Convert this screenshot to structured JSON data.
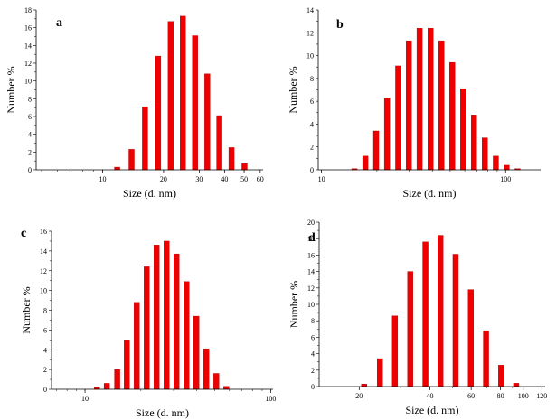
{
  "figure": {
    "bar_color": "#ee0000",
    "bar_edge_color": "#b00000",
    "axis_color": "#000000"
  },
  "chart_data": [
    {
      "panel": "a",
      "type": "bar",
      "xscale": "log",
      "xlim": [
        4.7,
        62
      ],
      "ylim": [
        0,
        18
      ],
      "x_ticks": [
        10,
        20,
        30,
        40,
        50,
        60
      ],
      "y_ticks": [
        0,
        2,
        4,
        6,
        8,
        10,
        12,
        14,
        16,
        18
      ],
      "xlabel": "Size (d. nm)",
      "ylabel": "Number %",
      "x": [
        11.8,
        13.9,
        16.2,
        18.8,
        21.7,
        24.9,
        28.6,
        32.9,
        37.7,
        43.3,
        50.2
      ],
      "values": [
        0.3,
        2.3,
        7.1,
        12.8,
        16.7,
        17.3,
        15.1,
        10.8,
        6.1,
        2.5,
        0.7
      ]
    },
    {
      "panel": "b",
      "type": "bar",
      "xscale": "log",
      "xlim": [
        9.6,
        155
      ],
      "ylim": [
        0,
        14
      ],
      "x_ticks": [
        10,
        100
      ],
      "y_ticks": [
        0,
        2,
        4,
        6,
        8,
        10,
        12,
        14
      ],
      "xlabel": "Size (d. nm)",
      "ylabel": "Number %",
      "x": [
        15.1,
        17.3,
        19.8,
        22.7,
        26.1,
        29.8,
        34.1,
        39.1,
        44.8,
        51.3,
        58.8,
        67.3,
        77.1,
        88.5,
        101.3,
        116.1
      ],
      "values": [
        0.1,
        1.2,
        3.4,
        6.3,
        9.1,
        11.3,
        12.4,
        12.4,
        11.3,
        9.4,
        7.1,
        4.8,
        2.8,
        1.2,
        0.4,
        0.1
      ]
    },
    {
      "panel": "c",
      "type": "bar",
      "xscale": "log",
      "xlim": [
        6.6,
        103
      ],
      "ylim": [
        0,
        16
      ],
      "x_ticks": [
        10,
        100
      ],
      "y_ticks": [
        0,
        2,
        4,
        6,
        8,
        10,
        12,
        14,
        16
      ],
      "xlabel": "Size (d. nm)",
      "ylabel": "Number %",
      "x": [
        11.6,
        13.1,
        14.9,
        16.8,
        19.0,
        21.5,
        24.3,
        27.5,
        31.1,
        35.2,
        39.8,
        45.0,
        51.0,
        57.7,
        65.2,
        73.8
      ],
      "values": [
        0.2,
        0.6,
        2.0,
        5.0,
        8.8,
        12.4,
        14.6,
        15.0,
        13.7,
        10.9,
        7.4,
        4.1,
        1.6,
        0.3,
        0.0,
        0.0
      ]
    },
    {
      "panel": "d",
      "type": "bar",
      "xscale": "log",
      "xlim": [
        13.5,
        124
      ],
      "ylim": [
        0,
        20
      ],
      "x_ticks": [
        20,
        40,
        60,
        80,
        100,
        120
      ],
      "y_ticks": [
        0,
        2,
        4,
        6,
        8,
        10,
        12,
        14,
        16,
        18,
        20
      ],
      "xlabel": "Size (d. nm)",
      "ylabel": "Number %",
      "x": [
        21.0,
        24.5,
        28.4,
        33.0,
        38.3,
        44.4,
        51.5,
        59.8,
        69.4,
        80.5,
        93.3
      ],
      "values": [
        0.3,
        3.4,
        8.6,
        14.0,
        17.6,
        18.4,
        16.1,
        11.8,
        6.8,
        2.6,
        0.4
      ]
    }
  ]
}
